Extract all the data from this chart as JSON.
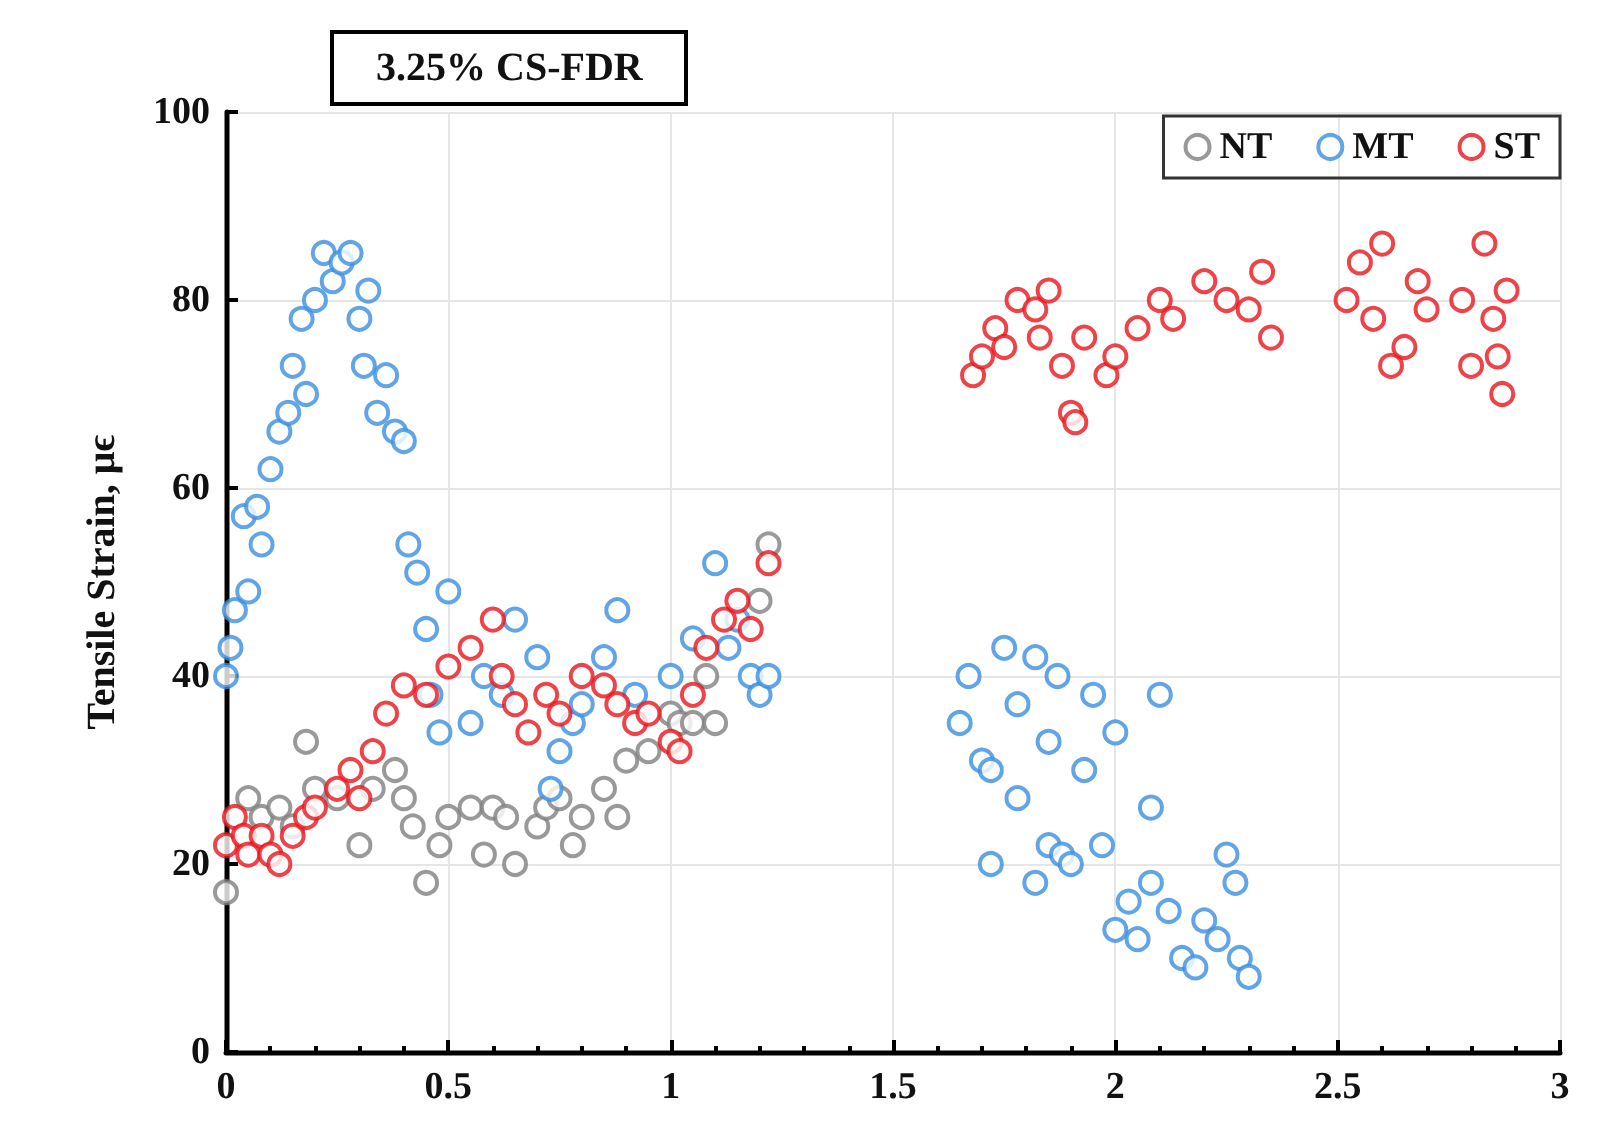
{
  "chart_data": {
    "type": "scatter",
    "title": "3.25% CS-FDR",
    "ylabel": "Tensile Strain, μϵ",
    "xlim": [
      0,
      3
    ],
    "xticks": [
      0,
      0.5,
      1,
      1.5,
      2,
      2.5,
      3
    ],
    "ylim": [
      0,
      100
    ],
    "yticks": [
      0,
      20,
      40,
      60,
      80,
      100
    ],
    "grid": true,
    "legend": "top right",
    "marker": "circle",
    "series": [
      {
        "name": "NT",
        "color": "#7f7f7f",
        "x": [
          0,
          0.02,
          0.05,
          0.08,
          0.12,
          0.15,
          0.18,
          0.2,
          0.25,
          0.3,
          0.33,
          0.38,
          0.4,
          0.42,
          0.45,
          0.48,
          0.5,
          0.55,
          0.58,
          0.6,
          0.63,
          0.65,
          0.7,
          0.72,
          0.75,
          0.78,
          0.8,
          0.85,
          0.88,
          0.9,
          0.95,
          1.0,
          1.02,
          1.05,
          1.08,
          1.1,
          1.15,
          1.18,
          1.2,
          1.22
        ],
        "values": [
          17,
          null,
          27,
          25,
          26,
          24,
          33,
          28,
          27,
          22,
          28,
          30,
          27,
          24,
          18,
          22,
          25,
          26,
          21,
          26,
          25,
          20,
          24,
          26,
          27,
          22,
          25,
          28,
          25,
          31,
          32,
          36,
          35,
          35,
          40,
          35,
          null,
          null,
          48,
          54
        ]
      },
      {
        "name": "MT",
        "color": "#3b8fe0",
        "x": [
          0,
          0.01,
          0.02,
          0.04,
          0.05,
          0.07,
          0.08,
          0.1,
          0.12,
          0.14,
          0.15,
          0.17,
          0.18,
          0.2,
          0.22,
          0.24,
          0.26,
          0.28,
          0.3,
          0.31,
          0.32,
          0.34,
          0.36,
          0.38,
          0.4,
          0.41,
          0.43,
          0.45,
          0.46,
          0.48,
          0.5,
          0.55,
          0.58,
          0.62,
          0.65,
          0.7,
          0.73,
          0.75,
          0.78,
          0.8,
          0.85,
          0.88,
          0.92,
          1.0,
          1.05,
          1.1,
          1.13,
          1.15,
          1.18,
          1.2,
          1.22,
          1.65,
          1.67,
          1.7,
          1.72,
          1.72,
          1.75,
          1.78,
          1.78,
          1.82,
          1.82,
          1.85,
          1.85,
          1.87,
          1.88,
          1.9,
          1.93,
          1.95,
          1.97,
          2.0,
          2.0,
          2.03,
          2.05,
          2.08,
          2.08,
          2.1,
          2.12,
          2.15,
          2.18,
          2.2,
          2.23,
          2.25,
          2.27,
          2.28,
          2.3
        ],
        "values": [
          40,
          43,
          47,
          57,
          49,
          58,
          54,
          62,
          66,
          68,
          73,
          78,
          70,
          80,
          85,
          82,
          84,
          85,
          78,
          73,
          81,
          68,
          72,
          66,
          65,
          54,
          51,
          45,
          38,
          34,
          49,
          35,
          40,
          38,
          46,
          42,
          28,
          32,
          35,
          37,
          42,
          47,
          38,
          40,
          44,
          52,
          43,
          46,
          40,
          38,
          40,
          35,
          40,
          31,
          20,
          30,
          43,
          27,
          37,
          42,
          18,
          22,
          33,
          40,
          21,
          20,
          30,
          38,
          22,
          34,
          13,
          16,
          12,
          26,
          18,
          38,
          15,
          10,
          9,
          14,
          12,
          21,
          18,
          10,
          8
        ]
      },
      {
        "name": "ST",
        "color": "#e8151b",
        "x": [
          0,
          0.02,
          0.04,
          0.05,
          0.08,
          0.1,
          0.12,
          0.15,
          0.18,
          0.2,
          0.25,
          0.28,
          0.3,
          0.33,
          0.36,
          0.4,
          0.45,
          0.5,
          0.55,
          0.6,
          0.62,
          0.65,
          0.68,
          0.72,
          0.75,
          0.8,
          0.85,
          0.88,
          0.92,
          0.95,
          1.0,
          1.02,
          1.05,
          1.08,
          1.12,
          1.15,
          1.18,
          1.22,
          1.68,
          1.7,
          1.73,
          1.75,
          1.78,
          1.82,
          1.83,
          1.85,
          1.88,
          1.9,
          1.91,
          1.93,
          1.98,
          2.0,
          2.05,
          2.1,
          2.13,
          2.2,
          2.25,
          2.3,
          2.33,
          2.35,
          2.52,
          2.55,
          2.58,
          2.6,
          2.62,
          2.65,
          2.68,
          2.7,
          2.78,
          2.8,
          2.83,
          2.85,
          2.86,
          2.87,
          2.88
        ],
        "values": [
          22,
          25,
          23,
          21,
          23,
          21,
          20,
          23,
          25,
          26,
          28,
          30,
          27,
          32,
          36,
          39,
          38,
          41,
          43,
          46,
          40,
          37,
          34,
          38,
          36,
          40,
          39,
          37,
          35,
          36,
          33,
          32,
          38,
          43,
          46,
          48,
          45,
          52,
          72,
          74,
          77,
          75,
          80,
          79,
          76,
          81,
          73,
          68,
          67,
          76,
          72,
          74,
          77,
          80,
          78,
          82,
          80,
          79,
          83,
          76,
          80,
          84,
          78,
          86,
          73,
          75,
          82,
          79,
          80,
          73,
          86,
          78,
          74,
          70,
          81
        ]
      }
    ]
  }
}
